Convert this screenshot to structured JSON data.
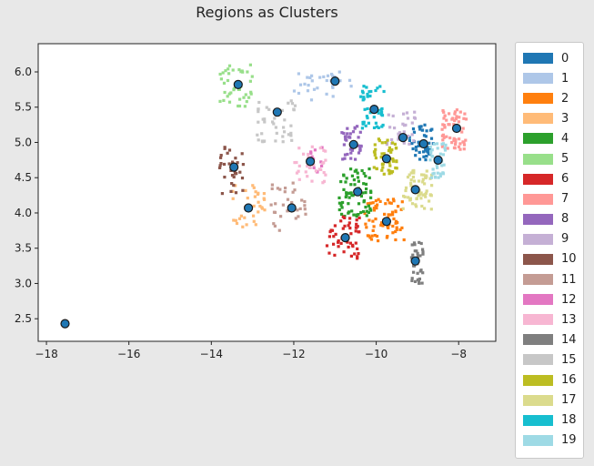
{
  "chart_data": {
    "type": "scatter",
    "title": "Regions as Clusters",
    "xlim": [
      -18.2,
      -7.1
    ],
    "ylim": [
      2.18,
      6.4
    ],
    "x_ticks": [
      -18,
      -16,
      -14,
      -12,
      -10,
      -8
    ],
    "y_ticks": [
      2.5,
      3.0,
      3.5,
      4.0,
      4.5,
      5.0,
      5.5,
      6.0
    ],
    "grid": false,
    "legend_position": "outside-right",
    "clusters": [
      {
        "name": "0",
        "color": "#1f77b4",
        "centroid": [
          -8.9,
          5.0
        ],
        "spread": [
          0.3,
          0.25
        ],
        "count": 45
      },
      {
        "name": "1",
        "color": "#aec7e8",
        "centroid": [
          -11.3,
          5.8
        ],
        "spread": [
          0.7,
          0.2
        ],
        "count": 30
      },
      {
        "name": "2",
        "color": "#ff7f0e",
        "centroid": [
          -9.8,
          3.9
        ],
        "spread": [
          0.5,
          0.3
        ],
        "count": 70
      },
      {
        "name": "3",
        "color": "#ffbb78",
        "centroid": [
          -13.1,
          4.1
        ],
        "spread": [
          0.4,
          0.3
        ],
        "count": 35
      },
      {
        "name": "4",
        "color": "#2ca02c",
        "centroid": [
          -10.5,
          4.3
        ],
        "spread": [
          0.4,
          0.35
        ],
        "count": 70
      },
      {
        "name": "5",
        "color": "#98df8a",
        "centroid": [
          -13.4,
          5.8
        ],
        "spread": [
          0.45,
          0.3
        ],
        "count": 40
      },
      {
        "name": "6",
        "color": "#d62728",
        "centroid": [
          -10.8,
          3.65
        ],
        "spread": [
          0.4,
          0.3
        ],
        "count": 50
      },
      {
        "name": "7",
        "color": "#ff9896",
        "centroid": [
          -8.1,
          5.2
        ],
        "spread": [
          0.3,
          0.3
        ],
        "count": 60
      },
      {
        "name": "8",
        "color": "#9467bd",
        "centroid": [
          -10.6,
          5.0
        ],
        "spread": [
          0.25,
          0.25
        ],
        "count": 35
      },
      {
        "name": "9",
        "color": "#c5b0d5",
        "centroid": [
          -9.4,
          5.2
        ],
        "spread": [
          0.35,
          0.25
        ],
        "count": 30
      },
      {
        "name": "10",
        "color": "#8c564b",
        "centroid": [
          -13.5,
          4.6
        ],
        "spread": [
          0.3,
          0.35
        ],
        "count": 35
      },
      {
        "name": "11",
        "color": "#c49c94",
        "centroid": [
          -12.1,
          4.1
        ],
        "spread": [
          0.45,
          0.35
        ],
        "count": 30
      },
      {
        "name": "12",
        "color": "#e377c2",
        "centroid": [
          -11.5,
          4.75
        ],
        "spread": [
          0.2,
          0.2
        ],
        "count": 12
      },
      {
        "name": "13",
        "color": "#f7b6d2",
        "centroid": [
          -11.6,
          4.7
        ],
        "spread": [
          0.4,
          0.3
        ],
        "count": 30
      },
      {
        "name": "14",
        "color": "#7f7f7f",
        "centroid": [
          -9.0,
          3.3
        ],
        "spread": [
          0.15,
          0.3
        ],
        "count": 35
      },
      {
        "name": "15",
        "color": "#c7c7c7",
        "centroid": [
          -12.4,
          5.3
        ],
        "spread": [
          0.5,
          0.3
        ],
        "count": 40
      },
      {
        "name": "16",
        "color": "#bcbd22",
        "centroid": [
          -9.8,
          4.8
        ],
        "spread": [
          0.3,
          0.25
        ],
        "count": 50
      },
      {
        "name": "17",
        "color": "#dbdb8d",
        "centroid": [
          -9.0,
          4.35
        ],
        "spread": [
          0.35,
          0.3
        ],
        "count": 60
      },
      {
        "name": "18",
        "color": "#17becf",
        "centroid": [
          -10.1,
          5.5
        ],
        "spread": [
          0.3,
          0.3
        ],
        "count": 45
      },
      {
        "name": "19",
        "color": "#9edae5",
        "centroid": [
          -8.5,
          4.75
        ],
        "spread": [
          0.2,
          0.25
        ],
        "count": 35
      }
    ],
    "centroids": [
      [
        -17.55,
        2.43
      ],
      [
        -13.35,
        5.82
      ],
      [
        -11.0,
        5.87
      ],
      [
        -10.05,
        5.47
      ],
      [
        -12.4,
        5.43
      ],
      [
        -8.05,
        5.2
      ],
      [
        -9.35,
        5.07
      ],
      [
        -8.85,
        4.98
      ],
      [
        -10.55,
        4.97
      ],
      [
        -11.6,
        4.73
      ],
      [
        -9.75,
        4.77
      ],
      [
        -8.5,
        4.75
      ],
      [
        -13.45,
        4.65
      ],
      [
        -9.05,
        4.33
      ],
      [
        -10.45,
        4.3
      ],
      [
        -13.1,
        4.07
      ],
      [
        -12.05,
        4.07
      ],
      [
        -9.75,
        3.88
      ],
      [
        -10.75,
        3.65
      ],
      [
        -9.05,
        3.32
      ]
    ]
  }
}
